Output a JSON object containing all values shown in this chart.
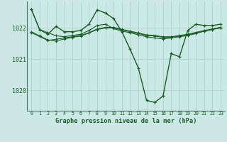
{
  "bg_color": "#cce8e4",
  "grid_color": "#b0d8d0",
  "line_color": "#1a5c2a",
  "title": "Graphe pression niveau de la mer (hPa)",
  "xlim": [
    -0.5,
    23.5
  ],
  "ylim": [
    1019.35,
    1022.85
  ],
  "yticks": [
    1020,
    1021,
    1022
  ],
  "xticks": [
    0,
    1,
    2,
    3,
    4,
    5,
    6,
    7,
    8,
    9,
    10,
    11,
    12,
    13,
    14,
    15,
    16,
    17,
    18,
    19,
    20,
    21,
    22,
    23
  ],
  "series": {
    "s1": [
      1022.6,
      1021.95,
      1021.85,
      1021.75,
      1021.72,
      1021.76,
      1021.8,
      1021.92,
      1022.08,
      1022.12,
      1021.98,
      1021.9,
      1021.85,
      1021.78,
      1021.72,
      1021.68,
      1021.65,
      1021.68,
      1021.72,
      1021.76,
      1021.82,
      1021.9,
      1021.96,
      1022.02
    ],
    "s2": [
      1022.6,
      1021.95,
      1021.8,
      1022.05,
      1021.88,
      1021.88,
      1021.92,
      1022.12,
      1022.58,
      1022.48,
      1022.3,
      1021.88,
      1021.32,
      1020.72,
      1019.68,
      1019.62,
      1019.82,
      1021.18,
      1021.08,
      1021.92,
      1022.12,
      1022.08,
      1022.08,
      1022.12
    ],
    "s3": [
      1021.85,
      1021.73,
      1021.6,
      1021.64,
      1021.68,
      1021.72,
      1021.76,
      1021.85,
      1021.97,
      1022.02,
      1022.02,
      1021.96,
      1021.9,
      1021.84,
      1021.78,
      1021.76,
      1021.72,
      1021.72,
      1021.76,
      1021.8,
      1021.86,
      1021.92,
      1021.97,
      1022.02
    ],
    "s4": [
      1021.88,
      1021.75,
      1021.62,
      1021.58,
      1021.65,
      1021.7,
      1021.74,
      1021.84,
      1021.95,
      1022.0,
      1022.0,
      1021.94,
      1021.88,
      1021.82,
      1021.76,
      1021.74,
      1021.7,
      1021.7,
      1021.74,
      1021.78,
      1021.84,
      1021.9,
      1021.95,
      1022.0
    ]
  }
}
